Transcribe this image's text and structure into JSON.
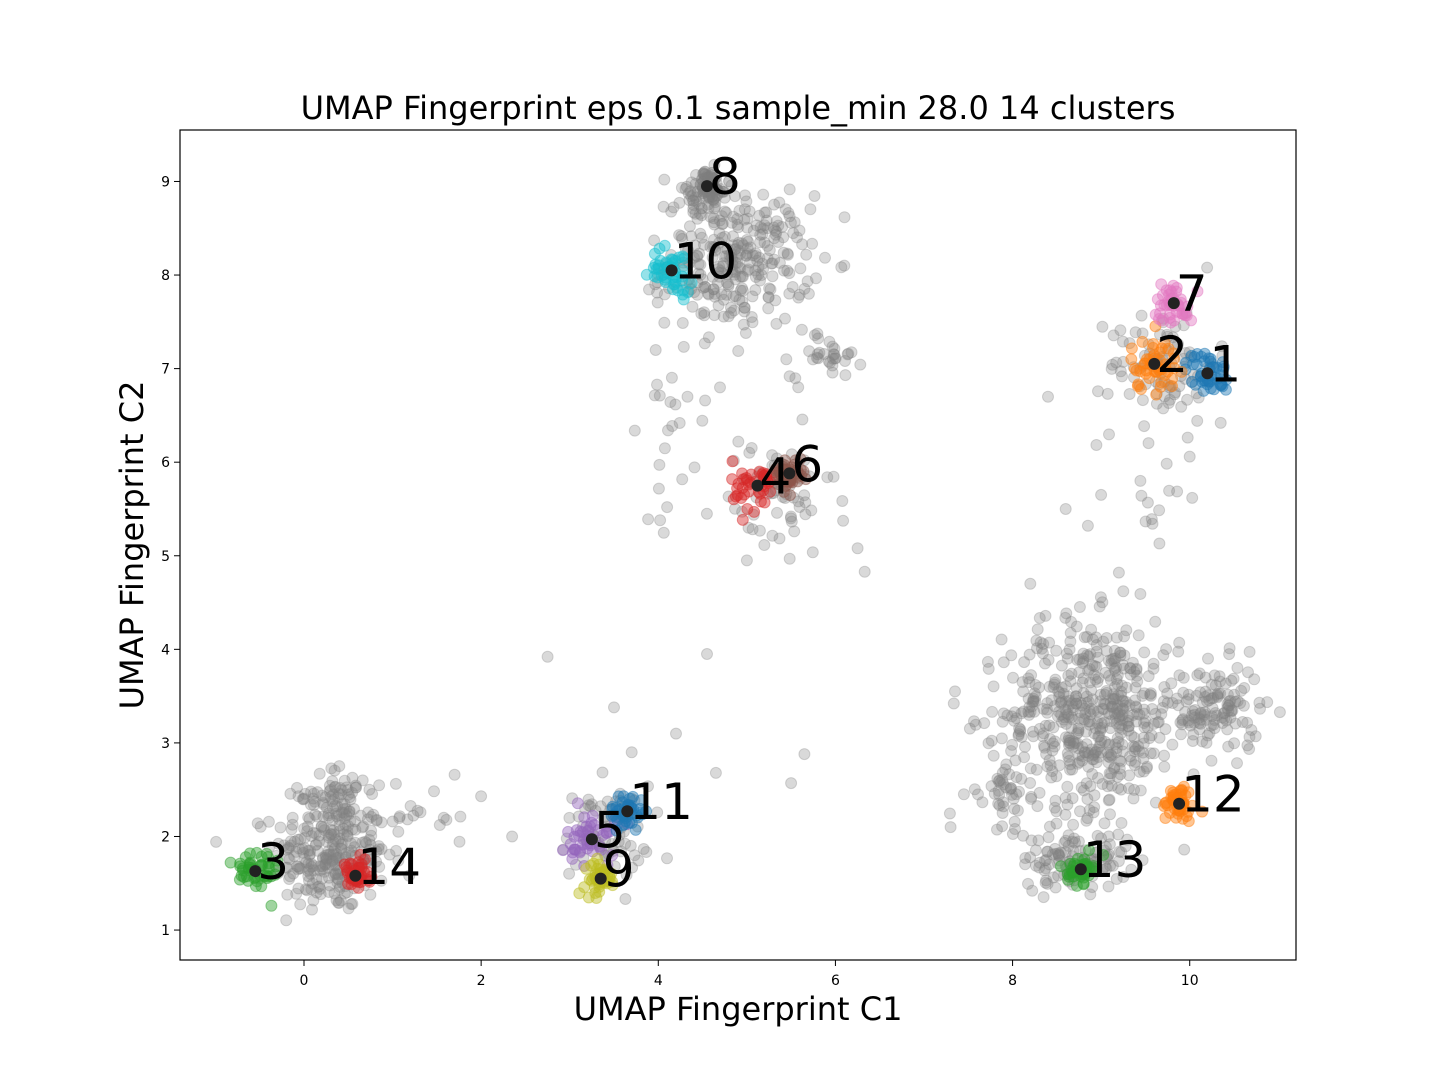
{
  "chart_data": {
    "type": "scatter",
    "title": "UMAP Fingerprint eps 0.1 sample_min 28.0 14 clusters",
    "xlabel": "UMAP Fingerprint C1",
    "ylabel": "UMAP Fingerprint C2",
    "xlim": [
      -1.4,
      11.2
    ],
    "ylim": [
      0.68,
      9.55
    ],
    "xticks": [
      0,
      2,
      4,
      6,
      8,
      10
    ],
    "yticks": [
      1,
      2,
      3,
      4,
      5,
      6,
      7,
      8,
      9
    ],
    "noise_color": "#808080",
    "noise_groups": [
      {
        "cx": 0.3,
        "cy": 1.8,
        "sx": 0.32,
        "sy": 0.3,
        "n": 260
      },
      {
        "cx": 0.35,
        "cy": 2.45,
        "sx": 0.2,
        "sy": 0.15,
        "n": 60
      },
      {
        "cx": 1.3,
        "cy": 2.2,
        "sx": 0.3,
        "sy": 0.2,
        "n": 20
      },
      {
        "cx": 3.4,
        "cy": 2.05,
        "sx": 0.25,
        "sy": 0.25,
        "n": 70
      },
      {
        "cx": 4.9,
        "cy": 8.15,
        "sx": 0.4,
        "sy": 0.35,
        "n": 280
      },
      {
        "cx": 4.5,
        "cy": 8.85,
        "sx": 0.18,
        "sy": 0.15,
        "n": 40
      },
      {
        "cx": 5.9,
        "cy": 7.15,
        "sx": 0.2,
        "sy": 0.12,
        "n": 30
      },
      {
        "cx": 4.2,
        "cy": 6.6,
        "sx": 0.2,
        "sy": 0.55,
        "n": 25
      },
      {
        "cx": 5.3,
        "cy": 5.6,
        "sx": 0.35,
        "sy": 0.35,
        "n": 60
      },
      {
        "cx": 9.7,
        "cy": 7.05,
        "sx": 0.3,
        "sy": 0.3,
        "n": 90
      },
      {
        "cx": 9.6,
        "cy": 5.9,
        "sx": 0.4,
        "sy": 0.45,
        "n": 15
      },
      {
        "cx": 8.9,
        "cy": 3.3,
        "sx": 0.5,
        "sy": 0.5,
        "n": 520
      },
      {
        "cx": 10.3,
        "cy": 3.35,
        "sx": 0.25,
        "sy": 0.25,
        "n": 120
      },
      {
        "cx": 8.7,
        "cy": 1.75,
        "sx": 0.3,
        "sy": 0.15,
        "n": 110
      },
      {
        "cx": 7.9,
        "cy": 2.5,
        "sx": 0.15,
        "sy": 0.2,
        "n": 40
      }
    ],
    "clusters": [
      {
        "label": "1",
        "x": 10.2,
        "y": 6.95,
        "color": "#1f77b4",
        "spread": 0.12
      },
      {
        "label": "2",
        "x": 9.6,
        "y": 7.05,
        "color": "#ff7f0e",
        "spread": 0.14
      },
      {
        "label": "3",
        "x": -0.55,
        "y": 1.63,
        "color": "#2ca02c",
        "spread": 0.14
      },
      {
        "label": "4",
        "x": 5.12,
        "y": 5.75,
        "color": "#d62728",
        "spread": 0.14
      },
      {
        "label": "5",
        "x": 3.25,
        "y": 1.97,
        "color": "#9467bd",
        "spread": 0.14
      },
      {
        "label": "6",
        "x": 5.48,
        "y": 5.88,
        "color": "#8c564b",
        "spread": 0.08
      },
      {
        "label": "7",
        "x": 9.82,
        "y": 7.7,
        "color": "#e377c2",
        "spread": 0.11
      },
      {
        "label": "8",
        "x": 4.55,
        "y": 8.95,
        "color": "#7f7f7f",
        "spread": 0.09
      },
      {
        "label": "9",
        "x": 3.35,
        "y": 1.55,
        "color": "#bcbd22",
        "spread": 0.09
      },
      {
        "label": "10",
        "x": 4.15,
        "y": 8.05,
        "color": "#17becf",
        "spread": 0.12
      },
      {
        "label": "11",
        "x": 3.65,
        "y": 2.27,
        "color": "#1f77b4",
        "spread": 0.1
      },
      {
        "label": "12",
        "x": 9.88,
        "y": 2.35,
        "color": "#ff7f0e",
        "spread": 0.1
      },
      {
        "label": "13",
        "x": 8.77,
        "y": 1.65,
        "color": "#2ca02c",
        "spread": 0.07
      },
      {
        "label": "14",
        "x": 0.58,
        "y": 1.58,
        "color": "#d62728",
        "spread": 0.08
      }
    ]
  }
}
